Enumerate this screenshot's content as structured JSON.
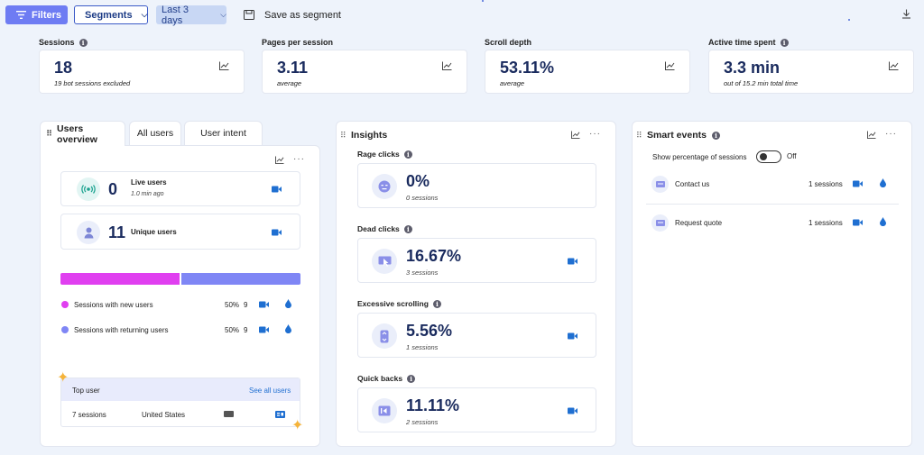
{
  "toolbar": {
    "filters_label": "Filters",
    "segments_label": "Segments",
    "date_range_label": "Last 3 days",
    "save_segment_label": "Save as segment"
  },
  "metrics": [
    {
      "label": "Sessions",
      "value": "18",
      "sub": "19 bot sessions excluded",
      "has_info": true
    },
    {
      "label": "Pages per session",
      "value": "3.11",
      "sub": "average",
      "has_info": false
    },
    {
      "label": "Scroll depth",
      "value": "53.11%",
      "sub": "average",
      "has_info": false
    },
    {
      "label": "Active time spent",
      "value": "3.3 min",
      "sub": "out of 15.2 min total time",
      "has_info": true
    }
  ],
  "users_panel": {
    "tabs": [
      "Users overview",
      "All users",
      "User intent"
    ],
    "live": {
      "count": "0",
      "label": "Live users",
      "time": "1.0 min ago"
    },
    "unique": {
      "count": "11",
      "label": "Unique users"
    },
    "split": {
      "new_fraction": 0.5,
      "new_color": "#e03ff0",
      "returning_color": "#7f86f5"
    },
    "legend": [
      {
        "label": "Sessions with new users",
        "pct": "50%",
        "count": "9"
      },
      {
        "label": "Sessions with returning users",
        "pct": "50%",
        "count": "9"
      }
    ],
    "top_user": {
      "title": "Top user",
      "see_all": "See all users",
      "sessions": "7 sessions",
      "country": "United States"
    }
  },
  "insights": {
    "title": "Insights",
    "items": [
      {
        "label": "Rage clicks",
        "value": "0%",
        "sub": "0 sessions",
        "has_recording": false
      },
      {
        "label": "Dead clicks",
        "value": "16.67%",
        "sub": "3 sessions",
        "has_recording": true
      },
      {
        "label": "Excessive scrolling",
        "value": "5.56%",
        "sub": "1 sessions",
        "has_recording": true
      },
      {
        "label": "Quick backs",
        "value": "11.11%",
        "sub": "2 sessions",
        "has_recording": true
      }
    ]
  },
  "smart_events": {
    "title": "Smart events",
    "toggle_label": "Show percentage of sessions",
    "toggle_state": "Off",
    "events": [
      {
        "name": "Contact us",
        "sessions": "1 sessions"
      },
      {
        "name": "Request quote",
        "sessions": "1 sessions"
      }
    ]
  },
  "colors": {
    "accent": "#6e7cf3",
    "icon_blue": "#1f6fd1",
    "title_navy": "#1a2b5e"
  }
}
